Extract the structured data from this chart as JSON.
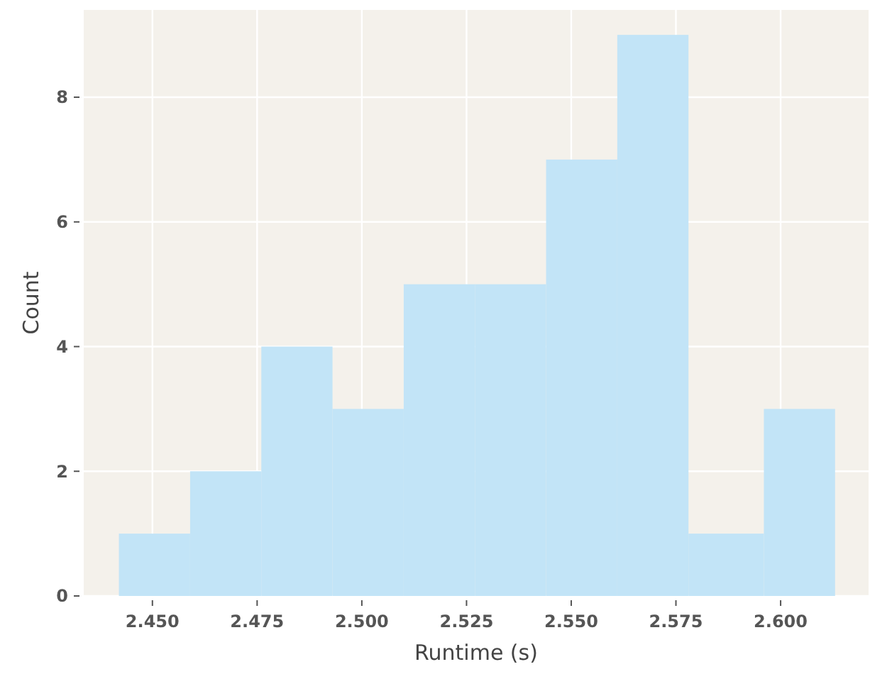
{
  "chart_data": {
    "type": "histogram",
    "xlabel": "Runtime (s)",
    "ylabel": "Count",
    "bins": [
      2.442,
      2.459,
      2.476,
      2.493,
      2.51,
      2.527,
      2.544,
      2.561,
      2.578,
      2.596,
      2.613
    ],
    "values": [
      1,
      2,
      4,
      3,
      5,
      5,
      7,
      9,
      1,
      3
    ],
    "color": "#c2e4f7",
    "xlim": [
      2.4336,
      2.621
    ],
    "xticks": [
      {
        "value": 2.45,
        "label": "2.450"
      },
      {
        "value": 2.475,
        "label": "2.475"
      },
      {
        "value": 2.5,
        "label": "2.500"
      },
      {
        "value": 2.525,
        "label": "2.525"
      },
      {
        "value": 2.55,
        "label": "2.550"
      },
      {
        "value": 2.575,
        "label": "2.575"
      },
      {
        "value": 2.6,
        "label": "2.600"
      }
    ],
    "ylim": [
      0,
      9.4
    ],
    "yticks": [
      0,
      2,
      4,
      6,
      8
    ],
    "grid": true
  }
}
